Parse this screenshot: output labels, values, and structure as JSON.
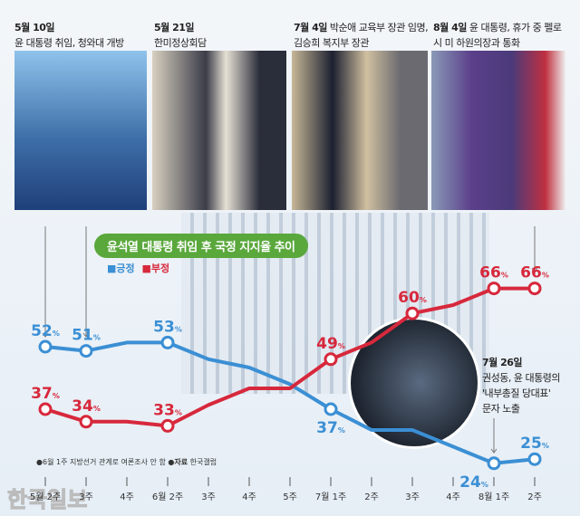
{
  "events": [
    {
      "date": "5월 10일",
      "text": "윤 대통령 취임, 청와대 개방"
    },
    {
      "date": "5월 21일",
      "text": "한미정상회담"
    },
    {
      "date": "7월 4일",
      "text": "박순애 교육부 장관 임명, 김승희 복지부 장관"
    },
    {
      "date": "8월 4일",
      "text": "윤 대통령, 휴가 중 펠로시 미 하원의장과 통화"
    }
  ],
  "annotation": {
    "date": "7월 26일",
    "lines": [
      "권성동, 윤 대통령의",
      "'내부총질 당대표'",
      "문자 노출"
    ]
  },
  "footnote": {
    "note": "●6월 1주 지방선거 관계로 여론조사 안 함",
    "source_label": "●자료",
    "source": "한국갤럽"
  },
  "watermark": "한국일보",
  "chart_data": {
    "type": "line",
    "title": "윤석열 대통령 취임 후 국정 지지율 추이",
    "categories": [
      "5월 2주",
      "3주",
      "4주",
      "6월 2주",
      "3주",
      "4주",
      "5주",
      "7월 1주",
      "2주",
      "3주",
      "4주",
      "8월 1주",
      "2주"
    ],
    "unit": "%",
    "series": [
      {
        "name": "긍정",
        "color": "#3b8fd4",
        "values": [
          52,
          51,
          53,
          53,
          49,
          47,
          43,
          37,
          32,
          32,
          28,
          24,
          25
        ],
        "labeled": [
          0,
          1,
          3,
          7,
          11,
          12
        ]
      },
      {
        "name": "부정",
        "color": "#d7283c",
        "values": [
          37,
          34,
          34,
          33,
          38,
          42,
          42,
          49,
          53,
          60,
          62,
          66,
          66
        ],
        "labeled": [
          0,
          1,
          3,
          7,
          9,
          11,
          12
        ]
      }
    ],
    "legend": "top-left"
  }
}
